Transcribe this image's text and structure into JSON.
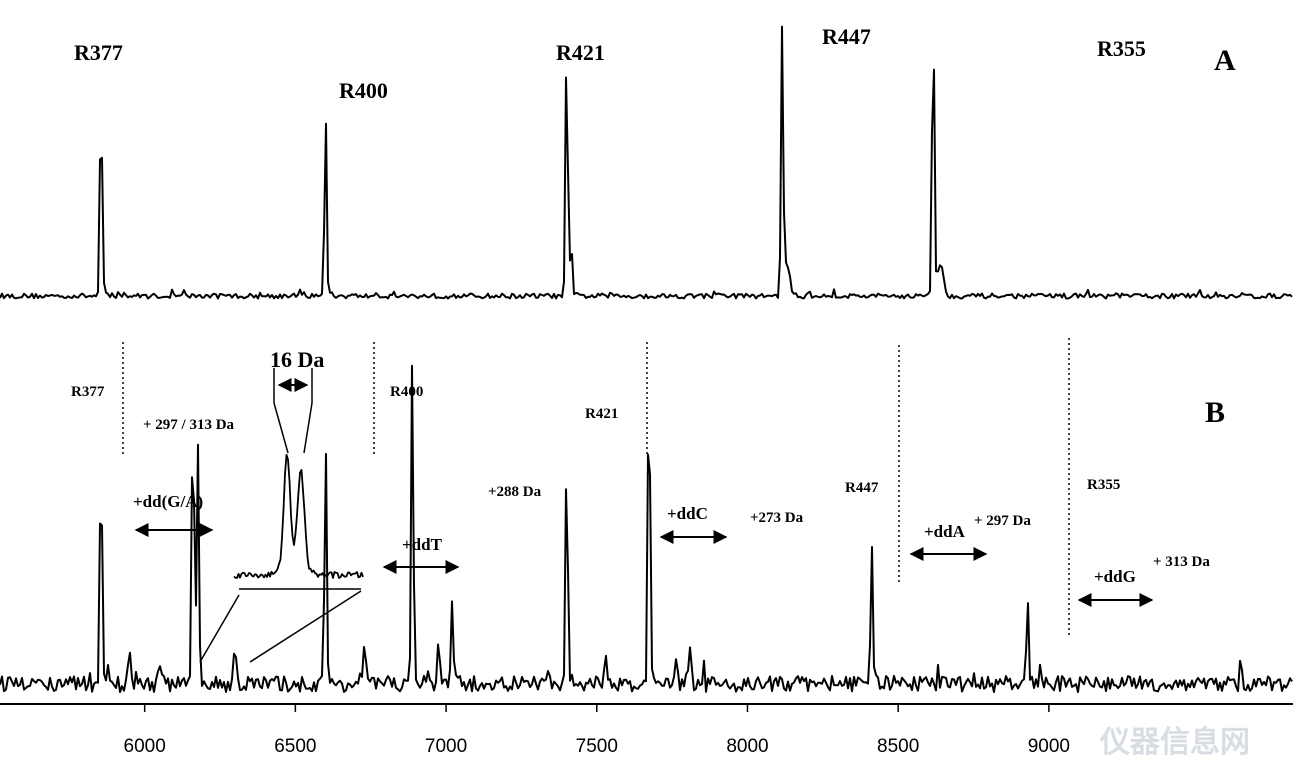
{
  "chart_data": {
    "type": "line",
    "title": "",
    "xlabel": "",
    "ylabel": "",
    "xlim": [
      5520,
      9810
    ],
    "x_ticks": [
      6000,
      6500,
      7000,
      7500,
      8000,
      8500,
      9000
    ],
    "grid": false,
    "legend": "none",
    "panels": [
      {
        "label": "A",
        "peaks": [
          {
            "name": "R377",
            "x": 5855,
            "height": 0.7
          },
          {
            "name": "R400",
            "x": 6600,
            "height": 0.61
          },
          {
            "name": "R421",
            "x": 7400,
            "height": 0.89
          },
          {
            "name": "R447",
            "x": 8115,
            "height": 0.88
          },
          {
            "name": "R355",
            "x": 8616,
            "height": 1.0
          }
        ]
      },
      {
        "label": "B",
        "primer_labels": [
          {
            "name": "R377",
            "x": 5855
          },
          {
            "name": "R400",
            "x": 6600
          },
          {
            "name": "R421",
            "x": 7400
          },
          {
            "name": "R447",
            "x": 8135
          },
          {
            "name": "R355",
            "x": 8665
          }
        ],
        "extension_labels": [
          {
            "label": "+dd(G/A)",
            "mass_shift": "+ 297 / 313 Da",
            "from": 5855,
            "to": 6168
          },
          {
            "label": "+ddT",
            "mass_shift": "+288 Da",
            "from": 6600,
            "to": 6888
          },
          {
            "label": "+ddC",
            "mass_shift": "+273 Da",
            "from": 7400,
            "to": 7673
          },
          {
            "label": "+ddA",
            "mass_shift": "+ 297 Da",
            "from": 8115,
            "to": 8412
          },
          {
            "label": "+ddG",
            "mass_shift": "+ 313 Da",
            "from": 8616,
            "to": 8929
          }
        ],
        "peaks": [
          {
            "x": 5855,
            "height": 0.69
          },
          {
            "x": 6160,
            "height": 0.86
          },
          {
            "x": 6176,
            "height": 0.7
          },
          {
            "x": 6600,
            "height": 0.71
          },
          {
            "x": 6888,
            "height": 1.0
          },
          {
            "x": 7020,
            "height": 0.26
          },
          {
            "x": 7400,
            "height": 0.71
          },
          {
            "x": 7673,
            "height": 0.97
          },
          {
            "x": 8412,
            "height": 0.43
          },
          {
            "x": 8929,
            "height": 0.26
          }
        ],
        "inset": {
          "label": "16 Da",
          "peaks": [
            6160,
            6176
          ]
        }
      }
    ]
  },
  "watermark": "仪器信息网"
}
